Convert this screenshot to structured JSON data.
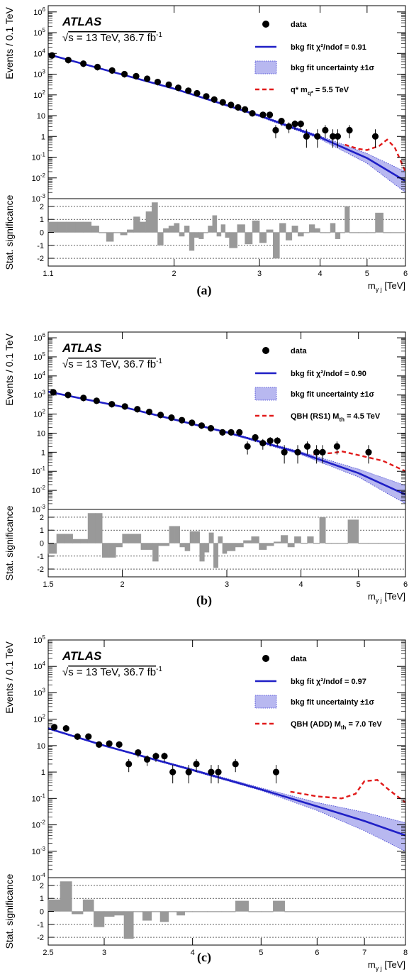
{
  "experiment": "ATLAS",
  "conditions": {
    "sqrt_s": "s = 13 TeV, 36.7 fb",
    "sup": "-1"
  },
  "y_label_main": "Events / 0.1 TeV",
  "y_label_ratio": "Stat. significance",
  "x_label": {
    "base": "m",
    "sub": "γ j",
    "unit": "[TeV]"
  },
  "legend_common": {
    "data": "data",
    "uncertainty": "bkg fit uncertainty ±1σ"
  },
  "chart_data": [
    {
      "type": "scatter",
      "panel": "(a)",
      "xlim": [
        1.1,
        6.0
      ],
      "ylim": [
        0.001,
        2000000
      ],
      "yscale": "log",
      "xscale": "log",
      "ratio_ylim": [
        -2.6,
        2.6
      ],
      "x_ticks": [
        "1.1",
        "2",
        "3",
        "4",
        "5",
        "6"
      ],
      "legend": {
        "fit": "bkg fit χ²/ndof = 0.91",
        "signal_main": "q* m",
        "signal_sub": "q*",
        "signal_val": " = 5.5 TeV"
      },
      "data": [
        {
          "x": 1.12,
          "y": 8000
        },
        {
          "x": 1.21,
          "y": 4800
        },
        {
          "x": 1.3,
          "y": 3200
        },
        {
          "x": 1.39,
          "y": 2200
        },
        {
          "x": 1.49,
          "y": 1500
        },
        {
          "x": 1.58,
          "y": 1000
        },
        {
          "x": 1.67,
          "y": 800
        },
        {
          "x": 1.76,
          "y": 600
        },
        {
          "x": 1.85,
          "y": 420
        },
        {
          "x": 1.95,
          "y": 310
        },
        {
          "x": 2.04,
          "y": 220
        },
        {
          "x": 2.14,
          "y": 160
        },
        {
          "x": 2.23,
          "y": 120
        },
        {
          "x": 2.33,
          "y": 85
        },
        {
          "x": 2.42,
          "y": 60
        },
        {
          "x": 2.52,
          "y": 44
        },
        {
          "x": 2.62,
          "y": 33
        },
        {
          "x": 2.71,
          "y": 25
        },
        {
          "x": 2.8,
          "y": 20
        },
        {
          "x": 2.9,
          "y": 13
        },
        {
          "x": 3.05,
          "y": 11
        },
        {
          "x": 3.15,
          "y": 11
        },
        {
          "x": 3.24,
          "y": 2
        },
        {
          "x": 3.33,
          "y": 5.5
        },
        {
          "x": 3.45,
          "y": 3
        },
        {
          "x": 3.55,
          "y": 4
        },
        {
          "x": 3.65,
          "y": 4
        },
        {
          "x": 3.75,
          "y": 1
        },
        {
          "x": 3.95,
          "y": 1
        },
        {
          "x": 4.1,
          "y": 2
        },
        {
          "x": 4.25,
          "y": 1
        },
        {
          "x": 4.35,
          "y": 1
        },
        {
          "x": 4.6,
          "y": 2
        },
        {
          "x": 5.2,
          "y": 1
        }
      ],
      "fit": {
        "x": [
          1.1,
          2,
          3,
          4,
          5,
          6
        ],
        "y": [
          9000,
          200,
          10,
          0.9,
          0.09,
          0.007
        ],
        "unc_low": [
          8500,
          190,
          9,
          0.75,
          0.05,
          0.002
        ],
        "unc_high": [
          9500,
          210,
          11,
          1.05,
          0.15,
          0.02
        ]
      },
      "signal": {
        "x": [
          4.5,
          4.8,
          5.0,
          5.3,
          5.5,
          5.7,
          6.0
        ],
        "y": [
          0.4,
          0.25,
          0.22,
          0.35,
          0.7,
          0.3,
          0.02
        ]
      },
      "significance": {
        "edges": [
          1.1,
          1.15,
          1.2,
          1.25,
          1.3,
          1.35,
          1.4,
          1.45,
          1.5,
          1.55,
          1.6,
          1.65,
          1.7,
          1.75,
          1.8,
          1.85,
          1.9,
          1.95,
          2.0,
          2.05,
          2.1,
          2.15,
          2.2,
          2.25,
          2.3,
          2.35,
          2.4,
          2.45,
          2.5,
          2.55,
          2.6,
          2.7,
          2.8,
          2.9,
          3.0,
          3.1,
          3.2,
          3.3,
          3.4,
          3.5,
          3.6,
          3.7,
          3.8,
          3.9,
          4.0,
          4.1,
          4.2,
          4.3,
          4.4,
          4.5,
          4.6,
          4.8,
          5.0,
          5.2,
          5.4,
          5.6,
          6.0
        ],
        "values": [
          0.8,
          0.8,
          0.8,
          0.8,
          0.8,
          0.5,
          0.0,
          -0.7,
          0.0,
          -0.2,
          0.2,
          1.2,
          0.8,
          1.6,
          2.3,
          -1.0,
          0.3,
          0.5,
          0.7,
          -0.3,
          0.5,
          -1.4,
          -0.4,
          -0.5,
          0.0,
          0.5,
          1.3,
          -0.3,
          0.6,
          -0.4,
          -1.2,
          0.6,
          -0.9,
          0.9,
          -0.8,
          0.2,
          -2.0,
          0.7,
          -0.6,
          0.5,
          -0.3,
          0.0,
          0.6,
          0.3,
          0.0,
          0.0,
          0.7,
          -0.5,
          0.0,
          2.0,
          0.0,
          0.0,
          0.0,
          1.5,
          0.0,
          0.0
        ]
      }
    },
    {
      "type": "scatter",
      "panel": "(b)",
      "xlim": [
        1.5,
        6.0
      ],
      "ylim": [
        0.001,
        2000000
      ],
      "yscale": "log",
      "xscale": "log",
      "ratio_ylim": [
        -2.6,
        2.6
      ],
      "x_ticks": [
        "1.5",
        "2",
        "3",
        "4",
        "5",
        "6"
      ],
      "legend": {
        "fit": "bkg fit χ²/ndof = 0.90",
        "signal_main": "QBH (RS1) M",
        "signal_sub": "th",
        "signal_val": " = 4.5 TeV"
      },
      "data": [
        {
          "x": 1.53,
          "y": 1400
        },
        {
          "x": 1.62,
          "y": 1000
        },
        {
          "x": 1.72,
          "y": 700
        },
        {
          "x": 1.81,
          "y": 500
        },
        {
          "x": 1.92,
          "y": 330
        },
        {
          "x": 2.02,
          "y": 250
        },
        {
          "x": 2.12,
          "y": 180
        },
        {
          "x": 2.22,
          "y": 130
        },
        {
          "x": 2.32,
          "y": 90
        },
        {
          "x": 2.42,
          "y": 65
        },
        {
          "x": 2.52,
          "y": 48
        },
        {
          "x": 2.62,
          "y": 35
        },
        {
          "x": 2.72,
          "y": 25
        },
        {
          "x": 2.82,
          "y": 18
        },
        {
          "x": 2.95,
          "y": 11
        },
        {
          "x": 3.05,
          "y": 11
        },
        {
          "x": 3.15,
          "y": 11
        },
        {
          "x": 3.25,
          "y": 2
        },
        {
          "x": 3.35,
          "y": 6
        },
        {
          "x": 3.45,
          "y": 3
        },
        {
          "x": 3.55,
          "y": 4
        },
        {
          "x": 3.65,
          "y": 4
        },
        {
          "x": 3.75,
          "y": 1
        },
        {
          "x": 3.95,
          "y": 1
        },
        {
          "x": 4.1,
          "y": 2
        },
        {
          "x": 4.25,
          "y": 1
        },
        {
          "x": 4.35,
          "y": 1
        },
        {
          "x": 4.6,
          "y": 2
        },
        {
          "x": 5.2,
          "y": 1
        }
      ],
      "fit": {
        "x": [
          1.5,
          2,
          3,
          4,
          5,
          6
        ],
        "y": [
          1500,
          240,
          11,
          0.9,
          0.08,
          0.006
        ],
        "unc_low": [
          1400,
          230,
          10,
          0.75,
          0.05,
          0.002
        ],
        "unc_high": [
          1600,
          250,
          12,
          1.05,
          0.13,
          0.018
        ]
      },
      "signal": {
        "x": [
          4.2,
          4.5,
          4.7,
          5.0,
          5.5,
          6.0
        ],
        "y": [
          0.8,
          0.9,
          1.1,
          0.7,
          0.35,
          0.1
        ]
      },
      "significance": {
        "edges": [
          1.5,
          1.55,
          1.6,
          1.65,
          1.7,
          1.75,
          1.8,
          1.85,
          1.9,
          1.95,
          2.0,
          2.05,
          2.1,
          2.15,
          2.2,
          2.25,
          2.3,
          2.35,
          2.4,
          2.45,
          2.5,
          2.55,
          2.6,
          2.65,
          2.7,
          2.75,
          2.8,
          2.85,
          2.9,
          2.95,
          3.0,
          3.1,
          3.2,
          3.3,
          3.4,
          3.5,
          3.6,
          3.7,
          3.8,
          3.9,
          4.0,
          4.1,
          4.2,
          4.3,
          4.4,
          4.5,
          4.6,
          4.8,
          5.0,
          5.2,
          5.4,
          6.0
        ],
        "values": [
          -0.8,
          0.7,
          0.7,
          0.3,
          0.3,
          2.3,
          2.3,
          -1.1,
          -1.1,
          -0.3,
          0.7,
          0.7,
          0.7,
          -0.5,
          -0.5,
          -1.4,
          -0.2,
          -0.2,
          1.3,
          1.3,
          -0.3,
          -0.6,
          0.9,
          0.9,
          -1.4,
          -0.7,
          0.8,
          -1.9,
          0.5,
          -0.8,
          -0.6,
          -0.3,
          0.2,
          0.5,
          -0.5,
          -0.2,
          0.1,
          0.6,
          -0.3,
          0.5,
          0.0,
          0.5,
          0.0,
          2.0,
          0.0,
          0.0,
          0.0,
          1.8,
          0.0,
          0.0,
          0.0
        ]
      }
    },
    {
      "type": "scatter",
      "panel": "(c)",
      "xlim": [
        2.5,
        8.0
      ],
      "ylim": [
        0.0001,
        100000
      ],
      "yscale": "log",
      "xscale": "log",
      "ratio_ylim": [
        -2.6,
        2.6
      ],
      "x_ticks": [
        "2.5",
        "3",
        "4",
        "5",
        "6",
        "7",
        "8"
      ],
      "legend": {
        "fit": "bkg fit χ²/ndof = 0.97",
        "signal_main": "QBH (ADD) M",
        "signal_sub": "th",
        "signal_val": " = 7.0 TeV"
      },
      "data": [
        {
          "x": 2.55,
          "y": 50
        },
        {
          "x": 2.65,
          "y": 45
        },
        {
          "x": 2.75,
          "y": 22
        },
        {
          "x": 2.85,
          "y": 22
        },
        {
          "x": 2.95,
          "y": 11
        },
        {
          "x": 3.05,
          "y": 12
        },
        {
          "x": 3.15,
          "y": 11
        },
        {
          "x": 3.25,
          "y": 2
        },
        {
          "x": 3.35,
          "y": 5.5
        },
        {
          "x": 3.45,
          "y": 3
        },
        {
          "x": 3.55,
          "y": 4
        },
        {
          "x": 3.65,
          "y": 4
        },
        {
          "x": 3.75,
          "y": 1
        },
        {
          "x": 3.95,
          "y": 1
        },
        {
          "x": 4.05,
          "y": 2
        },
        {
          "x": 4.25,
          "y": 1
        },
        {
          "x": 4.35,
          "y": 1
        },
        {
          "x": 4.6,
          "y": 2
        },
        {
          "x": 5.25,
          "y": 1
        }
      ],
      "fit": {
        "x": [
          2.5,
          3,
          4,
          5,
          6,
          7,
          8
        ],
        "y": [
          45,
          10,
          1.2,
          0.22,
          0.05,
          0.014,
          0.004
        ],
        "unc_low": [
          42,
          9.5,
          1.1,
          0.2,
          0.035,
          0.006,
          0.001
        ],
        "unc_high": [
          48,
          10.5,
          1.3,
          0.25,
          0.07,
          0.03,
          0.012
        ]
      },
      "signal": {
        "x": [
          5.5,
          6.0,
          6.5,
          6.8,
          7.0,
          7.3,
          7.6,
          8.0
        ],
        "y": [
          0.18,
          0.12,
          0.1,
          0.15,
          0.45,
          0.5,
          0.2,
          0.07
        ]
      },
      "significance": {
        "edges": [
          2.5,
          2.6,
          2.7,
          2.8,
          2.9,
          3.0,
          3.1,
          3.2,
          3.3,
          3.4,
          3.5,
          3.6,
          3.7,
          3.8,
          3.9,
          4.0,
          4.2,
          4.4,
          4.6,
          4.8,
          5.0,
          5.2,
          5.4,
          8.0
        ],
        "values": [
          0.9,
          2.3,
          -0.2,
          0.9,
          -1.2,
          -0.4,
          -0.3,
          -2.1,
          0.0,
          -0.7,
          0.0,
          -0.8,
          0.0,
          -0.3,
          0.0,
          0.0,
          0.0,
          0.0,
          0.8,
          0.0,
          0.0,
          0.8,
          0.0
        ]
      }
    }
  ],
  "colors": {
    "data": "#000000",
    "fit": "#1f1fc6",
    "band_fill": "#b8b8f0",
    "band_edge": "#3a3acf",
    "signal": "#e11a1a",
    "hist": "#999999"
  }
}
